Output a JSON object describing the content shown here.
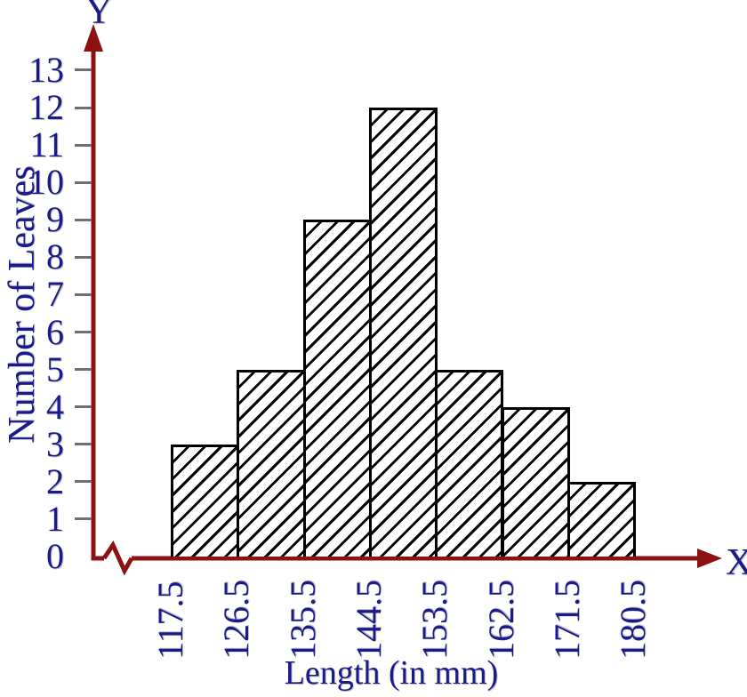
{
  "chart_data": {
    "type": "bar",
    "subtype": "histogram",
    "title": "",
    "xlabel": "Length (in mm)",
    "ylabel": "Number of Leaves",
    "x_axis_arrow_label": "X",
    "y_axis_arrow_label": "Y",
    "bin_labels": [
      "117.5",
      "126.5",
      "135.5",
      "144.5",
      "153.5",
      "162.5",
      "171.5",
      "180.5"
    ],
    "bin_edges": [
      117.5,
      126.5,
      135.5,
      144.5,
      153.5,
      162.5,
      171.5,
      180.5
    ],
    "values": [
      3,
      5,
      9,
      12,
      5,
      4,
      2
    ],
    "y_ticks": [
      0,
      1,
      2,
      3,
      4,
      5,
      6,
      7,
      8,
      9,
      10,
      11,
      12,
      13
    ],
    "ylim": [
      0,
      13
    ],
    "grid": false,
    "legend": null,
    "axis_break_near_origin": true,
    "bar_fill": "diagonal-hatch",
    "colors": {
      "axis": "#8e1111",
      "text": "#1a1a8c",
      "tick": "#6f6f6f",
      "bar_border": "#000000",
      "bar_background": "#ffffff"
    }
  }
}
